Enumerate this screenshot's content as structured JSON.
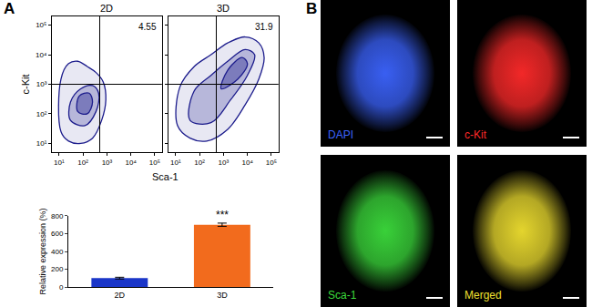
{
  "panel_labels": [
    "A",
    "B"
  ],
  "chart_data": [
    {
      "type": "contour",
      "title": "2D",
      "xlabel": "Sca-1",
      "ylabel": "c-Kit",
      "log": true,
      "xlim": [
        5,
        200000
      ],
      "ylim": [
        5,
        200000
      ],
      "xticks": [
        {
          "value": 10,
          "label": "10¹"
        },
        {
          "value": 100,
          "label": "10²"
        },
        {
          "value": 1000,
          "label": "10³"
        },
        {
          "value": 10000,
          "label": "10⁴"
        },
        {
          "value": 100000,
          "label": "10⁵"
        }
      ],
      "yticks": [
        {
          "value": 10,
          "label": "10¹"
        },
        {
          "value": 100,
          "label": "10²"
        },
        {
          "value": 1000,
          "label": "10³"
        },
        {
          "value": 10000,
          "label": "10⁴"
        },
        {
          "value": 100000,
          "label": "10⁵"
        }
      ],
      "gate": {
        "x": 500,
        "y": 1000
      },
      "quadrant_percent": 4.55,
      "color": "#1c1c8c",
      "contours": [
        {
          "x": [
            12,
            25,
            80,
            250,
            600,
            900,
            700,
            350,
            150,
            60,
            25,
            12,
            12
          ],
          "y": [
            25,
            12,
            10,
            15,
            60,
            300,
            1200,
            2500,
            4000,
            6000,
            5000,
            1500,
            25
          ]
        },
        {
          "x": [
            30,
            120,
            350,
            450,
            250,
            80,
            30,
            30
          ],
          "y": [
            60,
            40,
            120,
            500,
            900,
            700,
            250,
            60
          ]
        },
        {
          "x": [
            60,
            150,
            250,
            180,
            70,
            60
          ],
          "y": [
            120,
            100,
            250,
            500,
            400,
            120
          ]
        }
      ]
    },
    {
      "type": "contour",
      "title": "3D",
      "log": true,
      "tick_labels": "x",
      "xlim": [
        5,
        200000
      ],
      "ylim": [
        5,
        200000
      ],
      "xticks": [
        {
          "value": 10,
          "label": "10¹"
        },
        {
          "value": 100,
          "label": "10²"
        },
        {
          "value": 1000,
          "label": "10³"
        },
        {
          "value": 10000,
          "label": "10⁴"
        },
        {
          "value": 100000,
          "label": "10⁵"
        }
      ],
      "yticks": [
        {
          "value": 10,
          "label": "10¹"
        },
        {
          "value": 100,
          "label": "10²"
        },
        {
          "value": 1000,
          "label": "10³"
        },
        {
          "value": 10000,
          "label": "10⁴"
        },
        {
          "value": 100000,
          "label": "10⁵"
        }
      ],
      "gate": {
        "x": 500,
        "y": 1000
      },
      "quadrant_percent": 31.9,
      "color": "#1c1c8c",
      "contours": [
        {
          "x": [
            12,
            40,
            200,
            1500,
            8000,
            30000,
            50000,
            30000,
            8000,
            1500,
            300,
            60,
            15,
            12
          ],
          "y": [
            40,
            15,
            12,
            30,
            200,
            1500,
            8000,
            25000,
            40000,
            25000,
            10000,
            4000,
            800,
            40
          ]
        },
        {
          "x": [
            40,
            300,
            2000,
            10000,
            20000,
            8000,
            1500,
            300,
            60,
            40
          ],
          "y": [
            60,
            50,
            300,
            2000,
            10000,
            15000,
            6000,
            2000,
            600,
            60
          ]
        },
        {
          "x": [
            800,
            4000,
            10000,
            6000,
            1500,
            800
          ],
          "y": [
            700,
            1500,
            5000,
            8000,
            3000,
            700
          ]
        }
      ]
    },
    {
      "type": "bar",
      "ylabel": "Relative expression (%)",
      "categories": [
        "2D",
        "3D"
      ],
      "values": [
        100,
        700
      ],
      "errors": [
        10,
        18
      ],
      "colors": [
        "#1a36c8",
        "#f26b1d"
      ],
      "ylim": [
        0,
        800
      ],
      "yticks": [
        0,
        200,
        400,
        600,
        800
      ],
      "annotations": [
        {
          "text": "***",
          "category": "3D"
        }
      ]
    }
  ],
  "images": [
    {
      "label": "DAPI",
      "color": "#3c64ff"
    },
    {
      "label": "c-Kit",
      "color": "#ff2a2a"
    },
    {
      "label": "Sca-1",
      "color": "#3cdc3c"
    },
    {
      "label": "Merged",
      "color": "#f0e030"
    }
  ]
}
